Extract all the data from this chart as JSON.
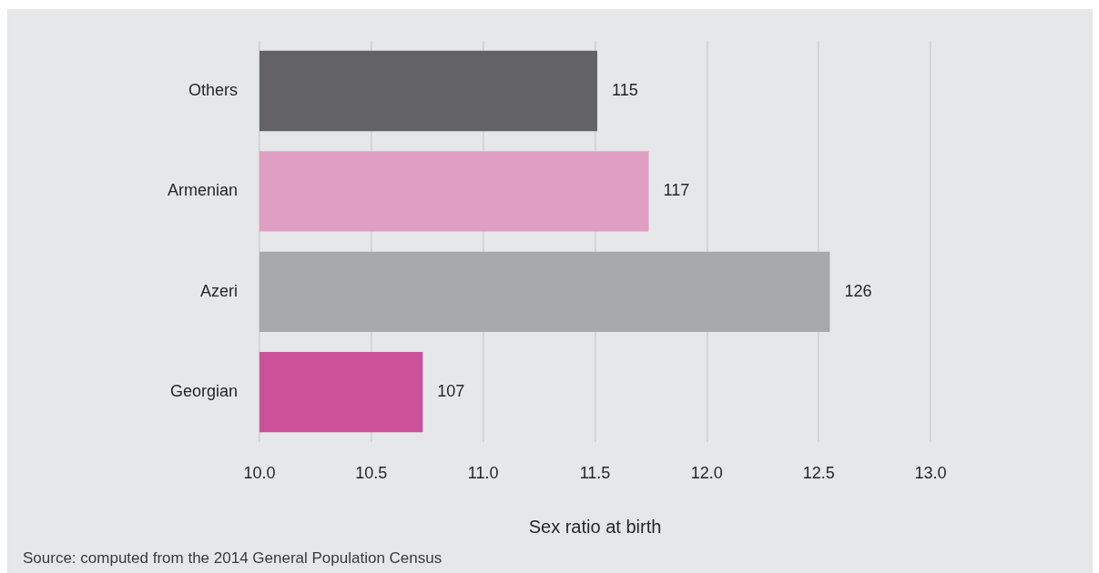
{
  "chart_data": {
    "type": "bar",
    "orientation": "horizontal",
    "categories": [
      "Others",
      "Armenian",
      "Azeri",
      "Georgian"
    ],
    "values": [
      11.51,
      11.74,
      12.55,
      10.73
    ],
    "colors": [
      "#636366",
      "#e09ec3",
      "#a7a8ac",
      "#cb5299"
    ],
    "xlim": [
      10,
      13
    ],
    "xticks": [
      {
        "value": 10,
        "label": "10.0"
      },
      10.5,
      {
        "value": 11,
        "label": "11.0"
      },
      11.5,
      {
        "value": 12,
        "label": "12.0"
      },
      12.5,
      {
        "value": 13,
        "label": "13.0"
      }
    ],
    "xlabel": "Sex ratio at birth",
    "grid": "x",
    "annotations": [
      {
        "text": "115",
        "x": 11.51,
        "y": "Others"
      },
      {
        "text": "117",
        "x": 11.74,
        "y": "Armenian"
      },
      {
        "text": "126",
        "x": 12.55,
        "y": "Azeri"
      },
      {
        "text": "107",
        "x": 10.73,
        "y": "Georgian"
      },
      "Source: computed from the 2014 General Population Census"
    ]
  }
}
